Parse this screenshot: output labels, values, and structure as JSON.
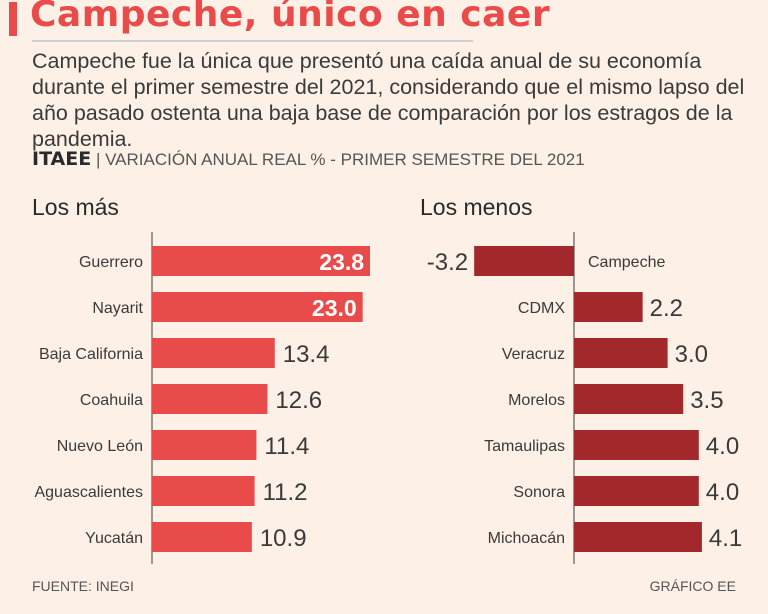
{
  "header": {
    "title": "Campeche, único en caer",
    "intro": "Campeche fue la única que presentó una caída anual de su economía durante el primer semestre del 2021, considerando que el mismo lapso del año pasado ostenta una baja base de comparación por los estragos de la pandemia.",
    "indicator": "ITAEE",
    "separator": "|",
    "subtitle": "VARIACIÓN ANUAL REAL % - PRIMER SEMESTRE DEL 2021"
  },
  "footer": {
    "source": "FUENTE: INEGI",
    "credit": "GRÁFICO EE"
  },
  "colors": {
    "accent": "#e94a4a",
    "left_bars": "#e94a4a",
    "right_bars": "#a3282b",
    "background": "#fdf0e6"
  },
  "chart_data": [
    {
      "type": "bar",
      "orientation": "horizontal",
      "title": "Los más",
      "categories": [
        "Guerrero",
        "Nayarit",
        "Baja California",
        "Coahuila",
        "Nuevo León",
        "Aguascalientes",
        "Yucatán"
      ],
      "values": [
        23.8,
        23.0,
        13.4,
        12.6,
        11.4,
        11.2,
        10.9
      ],
      "labels": [
        "23.8",
        "23.0",
        "13.4",
        "12.6",
        "11.4",
        "11.2",
        "10.9"
      ],
      "xlim": [
        0,
        23.8
      ],
      "grid": false,
      "legend": false
    },
    {
      "type": "bar",
      "orientation": "horizontal",
      "title": "Los menos",
      "categories": [
        "Campeche",
        "CDMX",
        "Veracruz",
        "Morelos",
        "Tamaulipas",
        "Sonora",
        "Michoacán"
      ],
      "values": [
        -3.2,
        2.2,
        3.0,
        3.5,
        4.0,
        4.0,
        4.1
      ],
      "labels": [
        "-3.2",
        "2.2",
        "3.0",
        "3.5",
        "4.0",
        "4.0",
        "4.1"
      ],
      "xlim": [
        -3.2,
        4.1
      ],
      "grid": false,
      "legend": false
    }
  ]
}
